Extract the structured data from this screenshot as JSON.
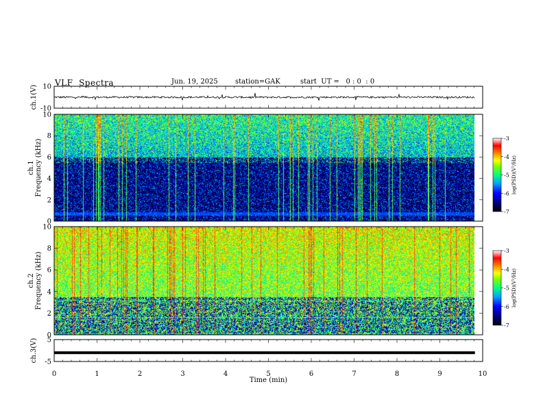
{
  "header": {
    "title": "VLF  Spectra",
    "date": "Jun. 19, 2025",
    "station": "station=GAK",
    "start": "start  UT =   0 : 0  : 0"
  },
  "chart_data": [
    {
      "type": "line",
      "panel": "ch1-waveform",
      "ylabel": "ch.1(V)",
      "ylim": [
        -10,
        10
      ],
      "yticks": [
        "10",
        "-10"
      ],
      "xlim": [
        0,
        10
      ],
      "baseline": 0
    },
    {
      "type": "heatmap",
      "panel": "ch1-spectrogram",
      "ylabel": "ch.1\nFrequency (kHz)",
      "ylim": [
        0,
        10
      ],
      "yticks": [
        "0",
        "2",
        "4",
        "6",
        "8",
        "10"
      ],
      "xlim": [
        0,
        10
      ],
      "data_end_min": 9.8,
      "colorbar": {
        "label": "log(PSD)(V²/Hz)",
        "range": [
          -7,
          -3
        ],
        "ticks": [
          "-3",
          "-4",
          "-5",
          "-6",
          "-7"
        ]
      }
    },
    {
      "type": "heatmap",
      "panel": "ch2-spectrogram",
      "ylabel": "ch.2\nFrequency (kHz)",
      "ylim": [
        0,
        10
      ],
      "yticks": [
        "0",
        "2",
        "4",
        "6",
        "8",
        "10"
      ],
      "xlim": [
        0,
        10
      ],
      "data_end_min": 9.8,
      "colorbar": {
        "label": "log(PSD)(V²/Hz)",
        "range": [
          -7,
          -3
        ],
        "ticks": [
          "-3",
          "-4",
          "-5",
          "-6",
          "-7"
        ]
      }
    },
    {
      "type": "line",
      "panel": "ch3-waveform",
      "ylabel": "ch.3(V)",
      "ylim": [
        -5,
        5
      ],
      "yticks": [
        "5",
        "-5"
      ],
      "xlim": [
        0,
        10
      ],
      "baseline": -1
    }
  ],
  "xaxis": {
    "label": "Time  (min)",
    "ticks": [
      "0",
      "1",
      "2",
      "3",
      "4",
      "5",
      "6",
      "7",
      "8",
      "9",
      "10"
    ]
  },
  "colors": {
    "colormap": [
      "#000000",
      "#000060",
      "#0000c8",
      "#0050ff",
      "#00c8ff",
      "#00ff80",
      "#a0ff00",
      "#ffff00",
      "#ff8000",
      "#ff0000",
      "#ffffff"
    ]
  }
}
